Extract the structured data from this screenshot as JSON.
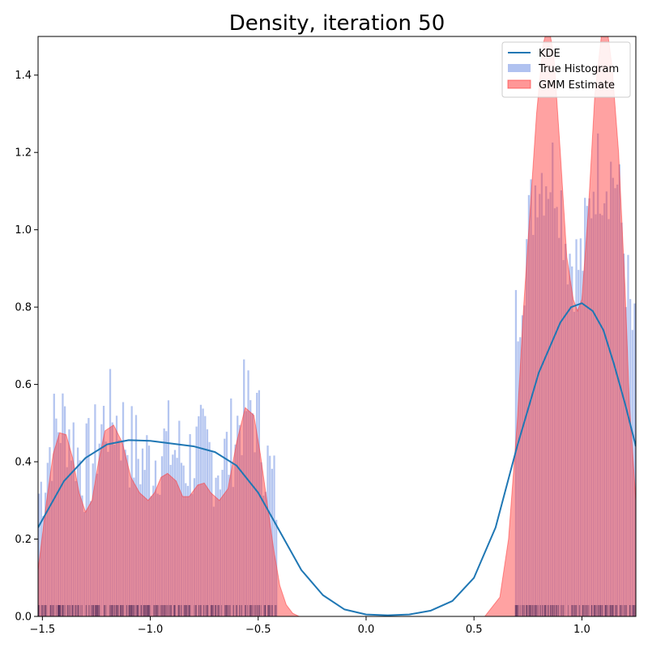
{
  "chart_data": {
    "type": "area",
    "title": "Density, iteration 50",
    "xlabel": "",
    "ylabel": "",
    "xlim": [
      -1.52,
      1.25
    ],
    "ylim": [
      0,
      1.5
    ],
    "xticks": [
      -1.5,
      -1.0,
      -0.5,
      0.0,
      0.5,
      1.0
    ],
    "xtick_labels": [
      "−1.5",
      "−1.0",
      "−0.5",
      "0.0",
      "0.5",
      "1.0"
    ],
    "yticks": [
      0.0,
      0.2,
      0.4,
      0.6,
      0.8,
      1.0,
      1.2,
      1.4
    ],
    "ytick_labels": [
      "0.0",
      "0.2",
      "0.4",
      "0.6",
      "0.8",
      "1.0",
      "1.2",
      "1.4"
    ],
    "grid": false,
    "legend_position": "top-right",
    "colors": {
      "kde": "#1f77b4",
      "histogram": "#6f8fe3",
      "gmm": "#ff3030",
      "rug": "#3b1f4f"
    },
    "series": [
      {
        "name": "KDE",
        "kind": "line",
        "x": [
          -1.52,
          -1.45,
          -1.4,
          -1.3,
          -1.2,
          -1.1,
          -1.0,
          -0.9,
          -0.8,
          -0.7,
          -0.6,
          -0.5,
          -0.4,
          -0.3,
          -0.2,
          -0.1,
          0.0,
          0.1,
          0.2,
          0.3,
          0.4,
          0.5,
          0.6,
          0.7,
          0.8,
          0.9,
          0.95,
          1.0,
          1.05,
          1.1,
          1.15,
          1.2,
          1.25
        ],
        "y": [
          0.23,
          0.3,
          0.35,
          0.41,
          0.445,
          0.456,
          0.454,
          0.447,
          0.44,
          0.425,
          0.39,
          0.32,
          0.22,
          0.12,
          0.055,
          0.018,
          0.005,
          0.003,
          0.005,
          0.015,
          0.04,
          0.1,
          0.23,
          0.44,
          0.63,
          0.76,
          0.8,
          0.81,
          0.79,
          0.74,
          0.65,
          0.55,
          0.44
        ]
      },
      {
        "name": "True Histogram",
        "kind": "histogram",
        "ranges": [
          [
            -1.52,
            -0.41
          ],
          [
            0.69,
            1.25
          ]
        ],
        "bins": 120,
        "max_value": 1.15
      },
      {
        "name": "GMM Estimate",
        "kind": "area",
        "x": [
          -1.52,
          -1.48,
          -1.45,
          -1.42,
          -1.39,
          -1.36,
          -1.33,
          -1.3,
          -1.27,
          -1.24,
          -1.21,
          -1.17,
          -1.13,
          -1.09,
          -1.05,
          -1.01,
          -0.98,
          -0.95,
          -0.92,
          -0.88,
          -0.85,
          -0.82,
          -0.78,
          -0.75,
          -0.72,
          -0.68,
          -0.64,
          -0.6,
          -0.56,
          -0.52,
          -0.49,
          -0.46,
          -0.43,
          -0.4,
          -0.37,
          -0.34,
          -0.31,
          0.55,
          0.62,
          0.66,
          0.7,
          0.73,
          0.76,
          0.79,
          0.82,
          0.845,
          0.87,
          0.9,
          0.93,
          0.96,
          0.98,
          1.0,
          1.03,
          1.06,
          1.09,
          1.115,
          1.14,
          1.17,
          1.2,
          1.22,
          1.25
        ],
        "y": [
          0.12,
          0.3,
          0.42,
          0.475,
          0.47,
          0.41,
          0.32,
          0.27,
          0.3,
          0.4,
          0.48,
          0.495,
          0.45,
          0.36,
          0.32,
          0.3,
          0.32,
          0.36,
          0.37,
          0.35,
          0.31,
          0.31,
          0.34,
          0.345,
          0.32,
          0.3,
          0.33,
          0.45,
          0.54,
          0.52,
          0.42,
          0.3,
          0.18,
          0.08,
          0.03,
          0.008,
          0.0,
          0.0,
          0.05,
          0.2,
          0.5,
          0.8,
          1.05,
          1.3,
          1.48,
          1.53,
          1.45,
          1.2,
          0.93,
          0.82,
          0.79,
          0.82,
          1.05,
          1.35,
          1.5,
          1.53,
          1.42,
          1.2,
          0.85,
          0.55,
          0.3
        ]
      }
    ]
  }
}
